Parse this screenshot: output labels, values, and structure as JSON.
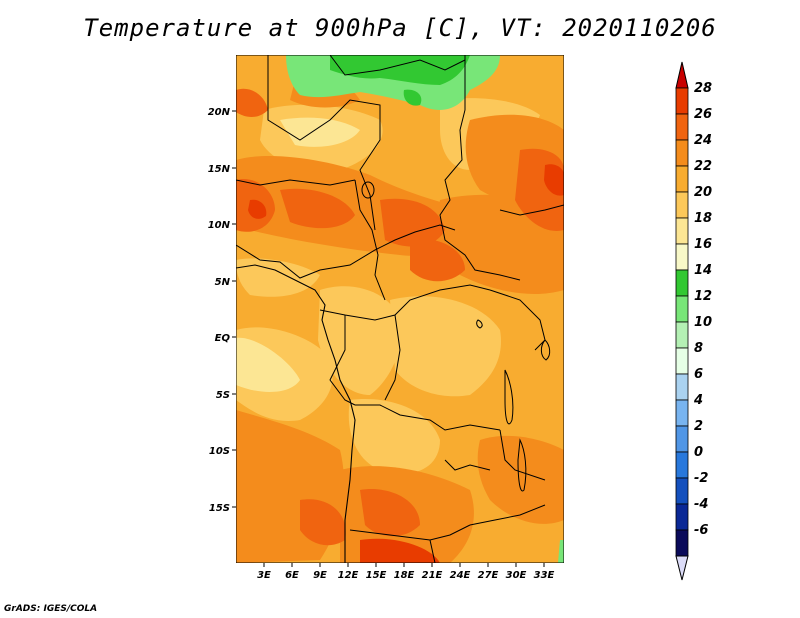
{
  "title": "Temperature at 900hPa [C], VT: 2020110206",
  "credit": "GrADS: IGES/COLA",
  "map": {
    "lon_ticks": [
      "3E",
      "6E",
      "9E",
      "12E",
      "15E",
      "18E",
      "21E",
      "24E",
      "27E",
      "30E",
      "33E"
    ],
    "lat_ticks": [
      "20N",
      "15N",
      "10N",
      "5N",
      "EQ",
      "5S",
      "10S",
      "15S"
    ]
  },
  "colorbar": {
    "labels": [
      "28",
      "26",
      "24",
      "22",
      "20",
      "18",
      "16",
      "14",
      "12",
      "10",
      "8",
      "6",
      "4",
      "2",
      "0",
      "-2",
      "-4",
      "-6"
    ],
    "colors": [
      "#c80000",
      "#e83c00",
      "#f06410",
      "#f48c1c",
      "#f8ac30",
      "#fcc85a",
      "#fce694",
      "#f8f8c8",
      "#32c832",
      "#78e678",
      "#b4f0b4",
      "#e6ffe6",
      "#aad2f0",
      "#78b4f0",
      "#5096e6",
      "#2878dc",
      "#1450be",
      "#0a2896",
      "#0a0a5a",
      "#dcdcf8"
    ]
  }
}
